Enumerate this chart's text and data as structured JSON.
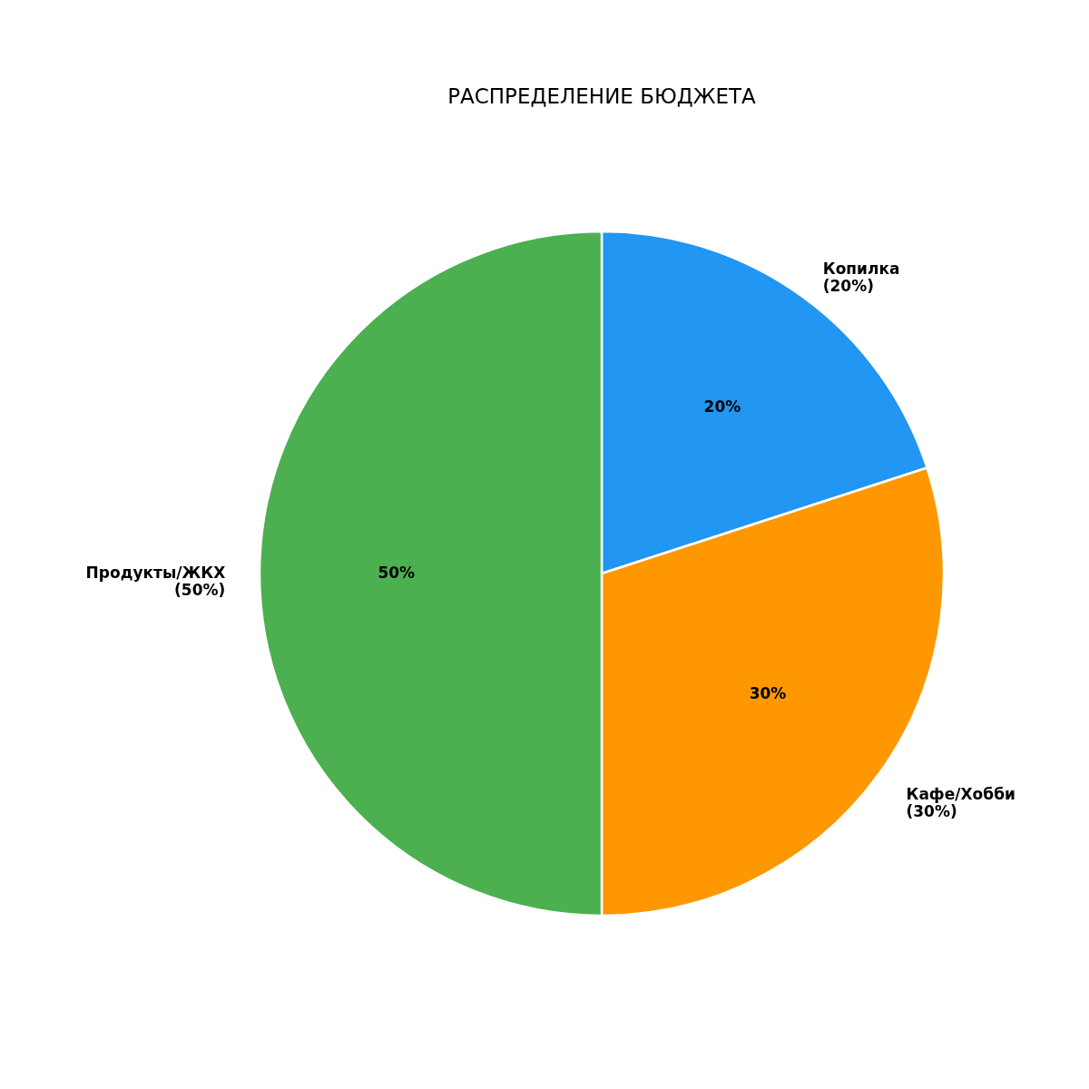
{
  "chart_data": {
    "type": "pie",
    "title": "РАСПРЕДЕЛЕНИЕ БЮДЖЕТА",
    "categories": [
      "Копилка",
      "Кафе/Хобби",
      "Продукты/ЖКХ"
    ],
    "values": [
      20,
      30,
      50
    ],
    "colors": [
      "#2196f3",
      "#ff9800",
      "#4caf50"
    ],
    "value_labels": [
      "20%",
      "30%",
      "50%"
    ],
    "annotations": [
      "(20%)",
      "(30%)",
      "(50%)"
    ]
  }
}
